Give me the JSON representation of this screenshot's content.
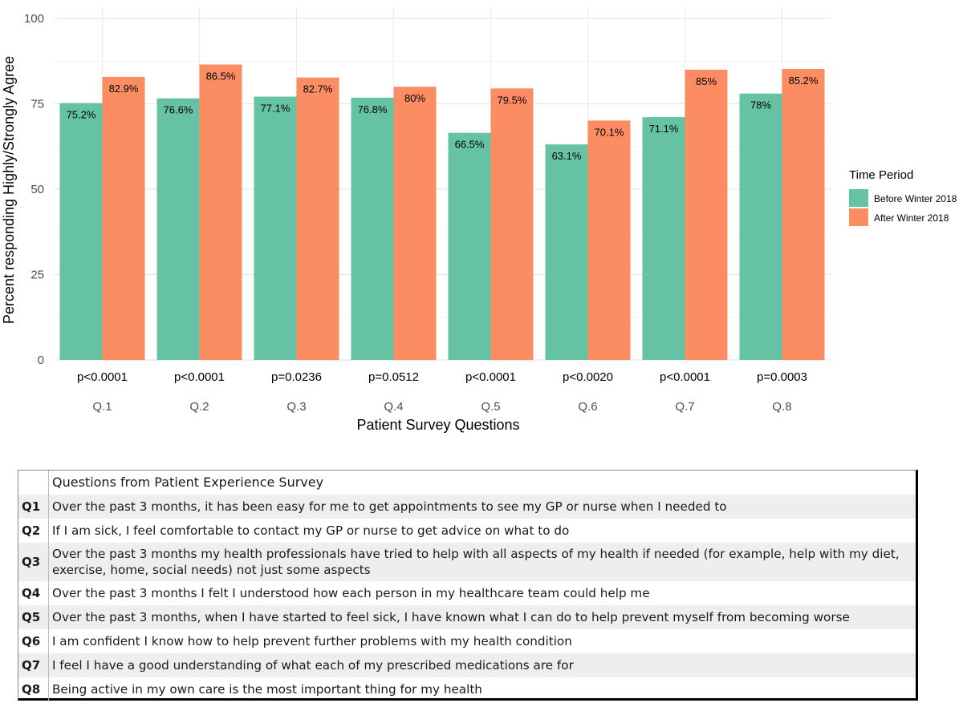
{
  "chart_data": {
    "type": "bar",
    "ylabel": "Percent responding Highly/Strongly Agree",
    "xlabel": "Patient Survey Questions",
    "ylim": [
      0,
      100
    ],
    "yticks": [
      0,
      25,
      50,
      75,
      100
    ],
    "grid": true,
    "categories": [
      "Q.1",
      "Q.2",
      "Q.3",
      "Q.4",
      "Q.5",
      "Q.6",
      "Q.7",
      "Q.8"
    ],
    "p_values": [
      "p<0.0001",
      "p<0.0001",
      "p=0.0236",
      "p=0.0512",
      "p<0.0001",
      "p<0.0020",
      "p<0.0001",
      "p=0.0003"
    ],
    "series": [
      {
        "name": "Before Winter 2018",
        "color": "#66c2a5",
        "values": [
          75.2,
          76.6,
          77.1,
          76.8,
          66.5,
          63.1,
          71.1,
          78
        ],
        "labels": [
          "75.2%",
          "76.6%",
          "77.1%",
          "76.8%",
          "66.5%",
          "63.1%",
          "71.1%",
          "78%"
        ]
      },
      {
        "name": "After Winter 2018",
        "color": "#fc8d62",
        "values": [
          82.9,
          86.5,
          82.7,
          80,
          79.5,
          70.1,
          85,
          85.2
        ],
        "labels": [
          "82.9%",
          "86.5%",
          "82.7%",
          "80%",
          "79.5%",
          "70.1%",
          "85%",
          "85.2%"
        ]
      }
    ],
    "legend": {
      "title": "Time Period",
      "placement": "right"
    }
  },
  "table": {
    "header": "Questions from Patient Experience Survey",
    "rows": [
      {
        "id": "Q1",
        "text": "Over the past 3 months, it has been easy for me to get appointments to see my GP or nurse when I needed to"
      },
      {
        "id": "Q2",
        "text": "If I am sick, I feel comfortable to contact my GP or nurse to get advice on what to do"
      },
      {
        "id": "Q3",
        "text": "Over the past 3 months my health professionals have tried to help with all aspects of my health if needed (for example, help with my diet, exercise, home, social needs) not just some aspects"
      },
      {
        "id": "Q4",
        "text": "Over the past 3 months I felt I understood how each person in my healthcare team could help me"
      },
      {
        "id": "Q5",
        "text": "Over the past 3 months, when I have started to feel sick, I have known what I can do to help prevent myself from becoming worse"
      },
      {
        "id": "Q6",
        "text": "I am confident I know how to help prevent further problems with my health condition"
      },
      {
        "id": "Q7",
        "text": "I feel I have a good understanding of what each of my prescribed medications are for"
      },
      {
        "id": "Q8",
        "text": "Being active in my own care is the most important thing for my health"
      }
    ]
  }
}
